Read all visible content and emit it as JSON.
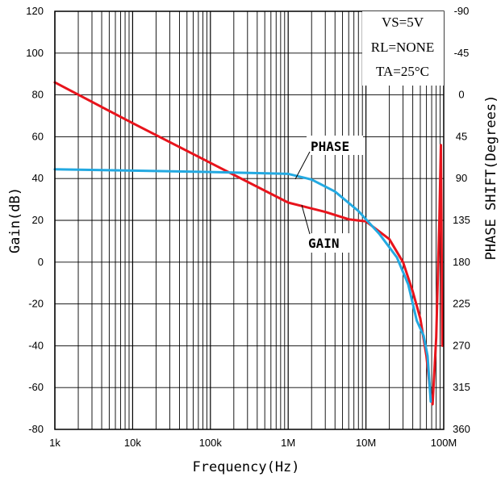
{
  "chart_data": {
    "type": "line",
    "title": "",
    "xlabel": "Frequency(Hz)",
    "ylabel": "Gain(dB)",
    "y2label": "PHASE SHIFT(Degrees)",
    "xscale": "log",
    "xlim": [
      1000,
      100000000
    ],
    "ylim": [
      -80,
      120
    ],
    "y2lim": [
      -90,
      360
    ],
    "y2_reversed": true,
    "grid": true,
    "x_ticks": [
      {
        "value": 1000,
        "label": "1k"
      },
      {
        "value": 10000,
        "label": "10k"
      },
      {
        "value": 100000,
        "label": "100k"
      },
      {
        "value": 1000000,
        "label": "1M"
      },
      {
        "value": 10000000,
        "label": "10M"
      },
      {
        "value": 100000000,
        "label": "100M"
      }
    ],
    "y_ticks": [
      120,
      100,
      80,
      60,
      40,
      20,
      0,
      -20,
      -40,
      -60,
      -80
    ],
    "y2_ticks": [
      -90,
      -45,
      0,
      45,
      90,
      135,
      180,
      225,
      270,
      315,
      360
    ],
    "conditions": [
      "VS=5V",
      "RL=NONE",
      "TA=25°C"
    ],
    "series": [
      {
        "name": "GAIN",
        "axis": "left",
        "color": "#e8141c",
        "x": [
          1000,
          10000,
          100000,
          1000000,
          3000000,
          6000000,
          10000000,
          20000000,
          30000000,
          40000000,
          50000000,
          60000000,
          68000000,
          72000000,
          80000000,
          88000000,
          92000000,
          96000000
        ],
        "y": [
          86,
          66.5,
          47.5,
          28.5,
          24,
          20.5,
          19.5,
          11,
          0,
          -14,
          -27,
          -45,
          -64,
          -68,
          -36,
          20,
          56,
          -40
        ]
      },
      {
        "name": "PHASE",
        "axis": "right",
        "color": "#23a9e1",
        "x": [
          1000,
          10000,
          100000,
          1000000,
          2000000,
          4000000,
          8000000,
          15000000,
          25000000,
          35000000,
          45000000,
          55000000,
          62000000,
          68000000
        ],
        "y": [
          80,
          81.5,
          83,
          85,
          91,
          104,
          125,
          150,
          175,
          204,
          243,
          259,
          281,
          330
        ]
      }
    ]
  }
}
